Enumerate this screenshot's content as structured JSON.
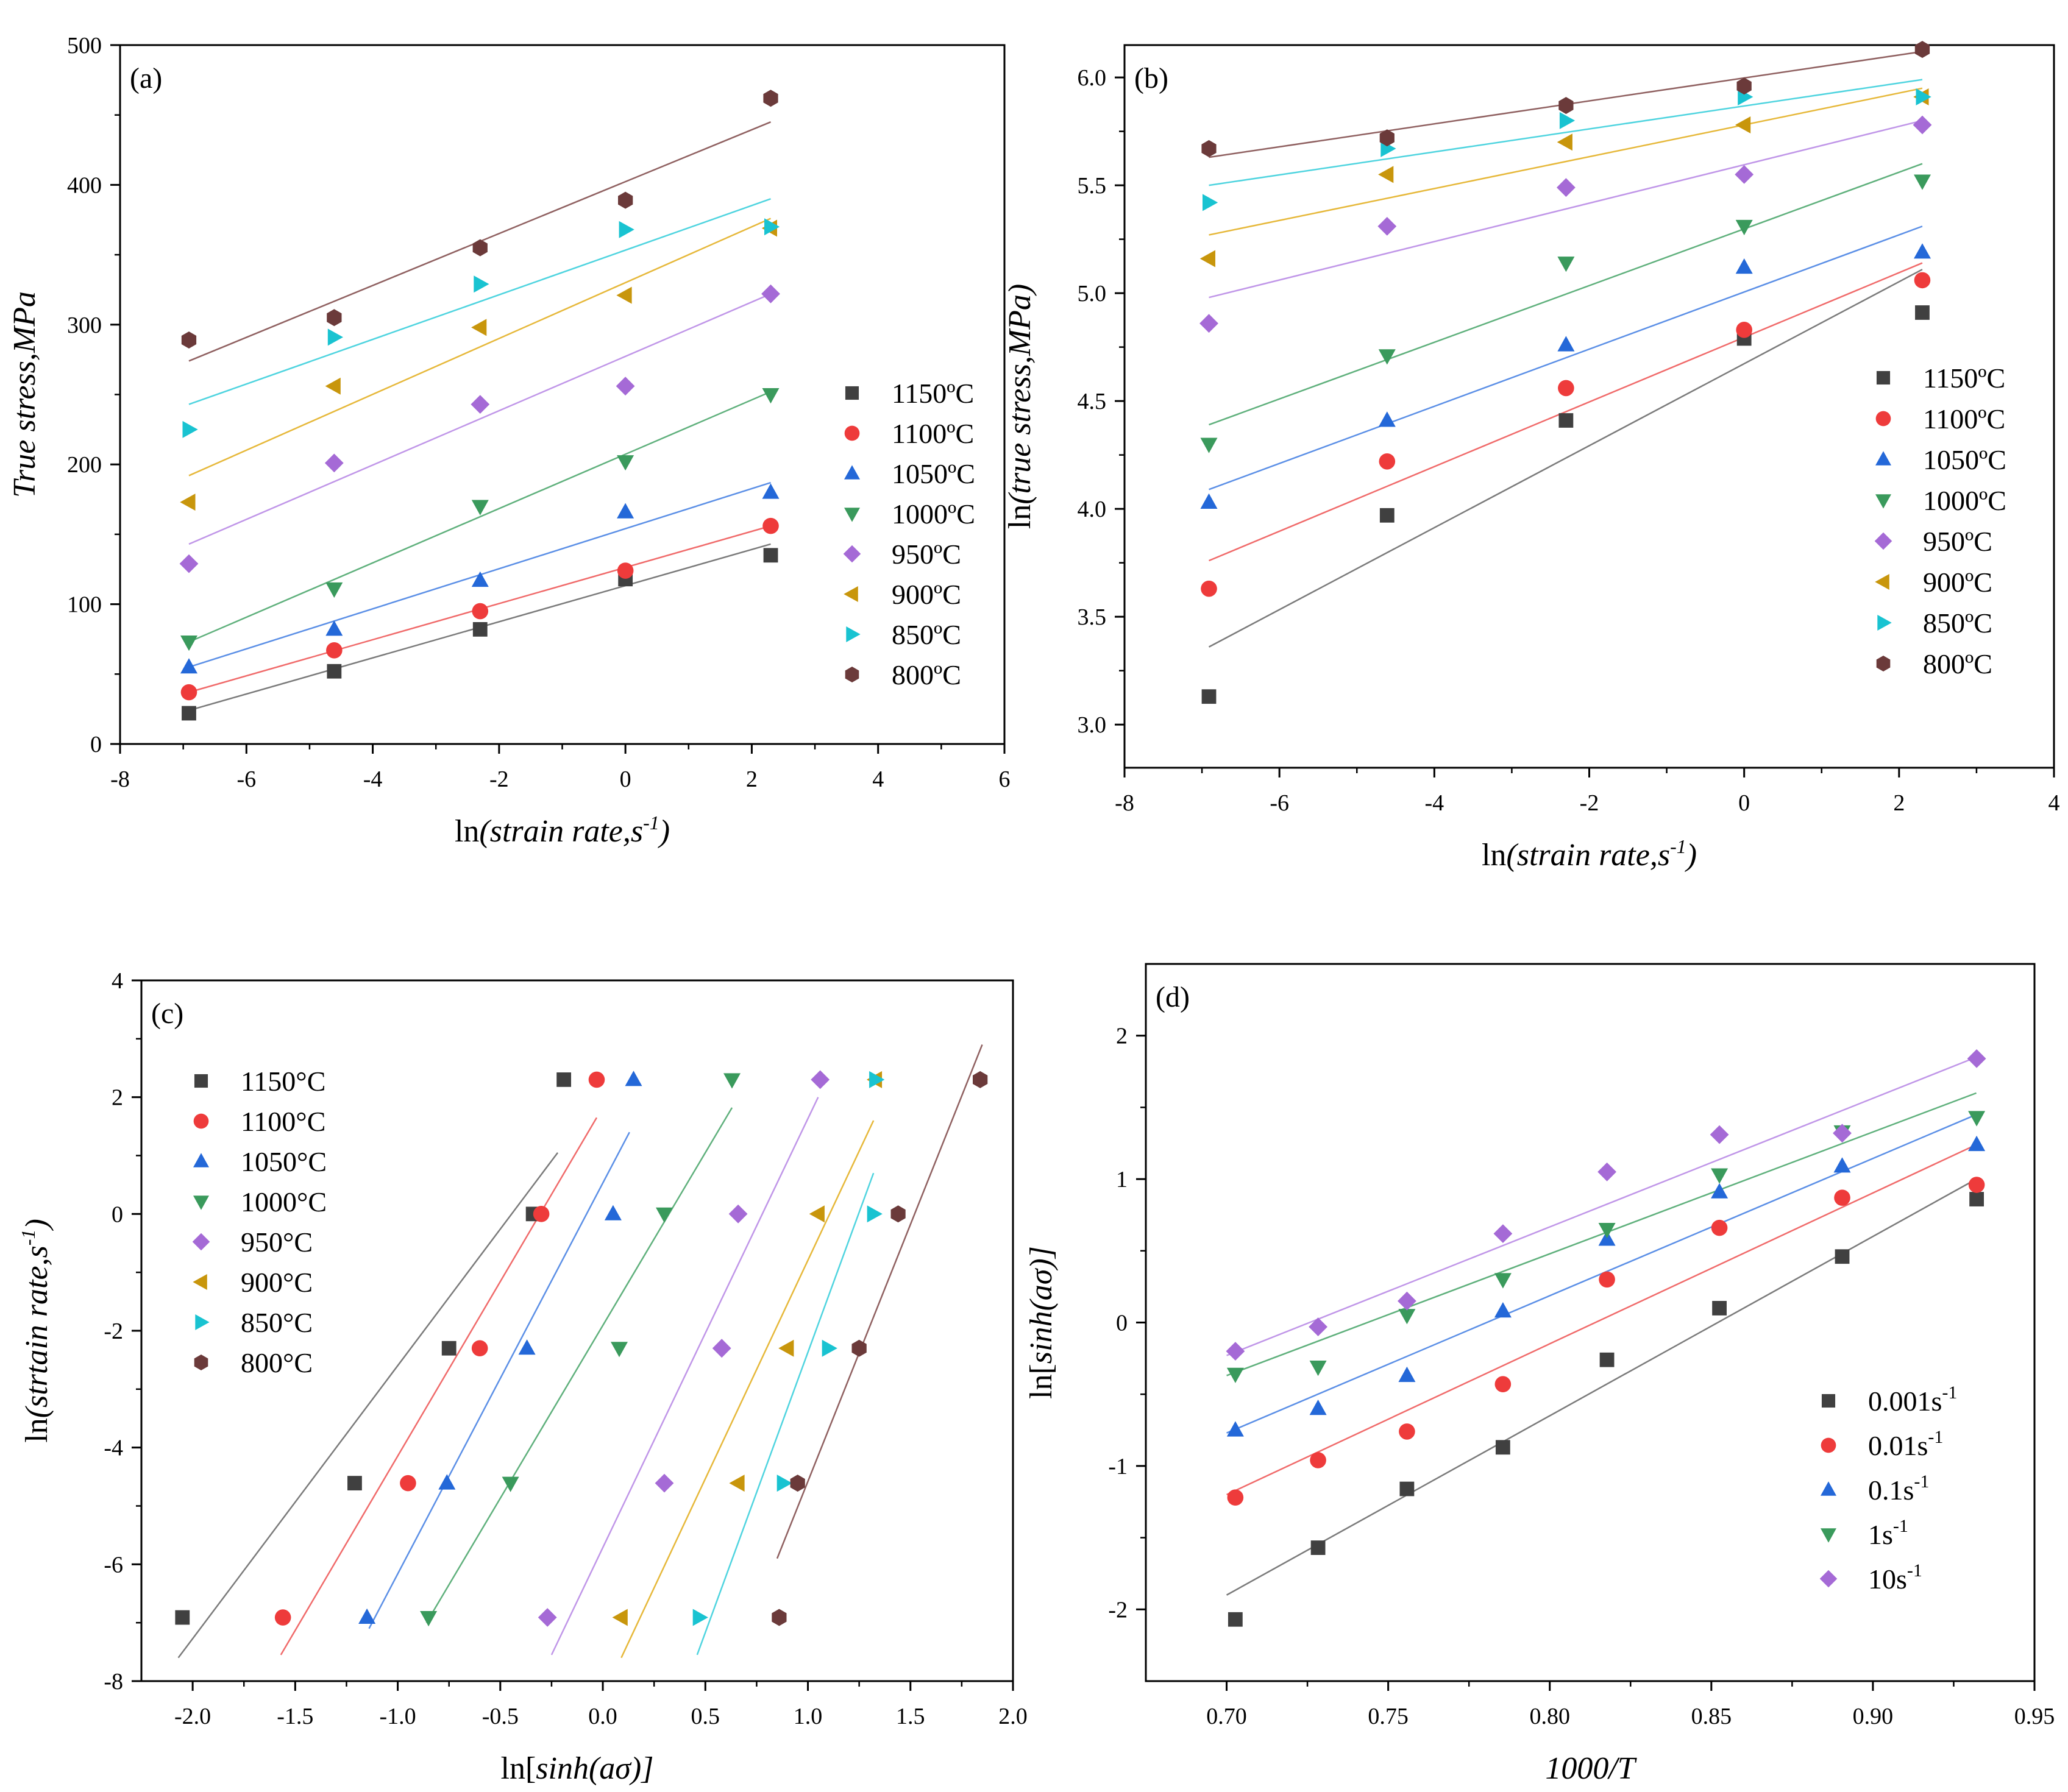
{
  "chart_data": [
    {
      "id": "a",
      "type": "scatter",
      "panel_label": "(a)",
      "xlabel_prefix": "ln",
      "xlabel_italic": "(strain rate,s",
      "xlabel_sup": "-1",
      "xlabel_end": ")",
      "ylabel_italic": "True stress,MPa",
      "xlim": [
        -8,
        6
      ],
      "ylim": [
        0,
        500
      ],
      "xticks": [
        -8,
        -6,
        -4,
        -2,
        0,
        2,
        4,
        6
      ],
      "yticks": [
        0,
        100,
        200,
        300,
        400,
        500
      ],
      "x": [
        -6.91,
        -4.61,
        -2.3,
        0,
        2.3
      ],
      "legend_position": "right",
      "series": [
        {
          "name": "1150ºC",
          "values": [
            22,
            52,
            82,
            118,
            135
          ],
          "fit": [
            [
              -6.91,
              24
            ],
            [
              2.3,
              143
            ]
          ]
        },
        {
          "name": "1100ºC",
          "values": [
            37,
            67,
            95,
            124,
            156
          ],
          "fit": [
            [
              -6.91,
              37
            ],
            [
              2.3,
              156
            ]
          ]
        },
        {
          "name": "1050ºC",
          "values": [
            55,
            82,
            117,
            166,
            180
          ],
          "fit": [
            [
              -6.91,
              55
            ],
            [
              2.3,
              187
            ]
          ]
        },
        {
          "name": "1000ºC",
          "values": [
            73,
            111,
            170,
            202,
            250
          ],
          "fit": [
            [
              -6.91,
              73
            ],
            [
              2.3,
              252
            ]
          ]
        },
        {
          "name": "950ºC",
          "values": [
            129,
            201,
            243,
            256,
            322
          ],
          "fit": [
            [
              -6.91,
              143
            ],
            [
              2.3,
              322
            ]
          ]
        },
        {
          "name": "900ºC",
          "values": [
            173,
            256,
            298,
            321,
            369
          ],
          "fit": [
            [
              -6.91,
              192
            ],
            [
              2.3,
              376
            ]
          ]
        },
        {
          "name": "850ºC",
          "values": [
            225,
            291,
            329,
            368,
            370
          ],
          "fit": [
            [
              -6.91,
              243
            ],
            [
              2.3,
              390
            ]
          ]
        },
        {
          "name": "800ºC",
          "values": [
            289,
            305,
            355,
            389,
            462
          ],
          "fit": [
            [
              -6.91,
              274
            ],
            [
              2.3,
              445
            ]
          ]
        }
      ]
    },
    {
      "id": "b",
      "type": "scatter",
      "panel_label": "(b)",
      "xlabel_prefix": "ln",
      "xlabel_italic": "(strain rate,s",
      "xlabel_sup": "-1",
      "xlabel_end": ")",
      "ylabel_prefix": "ln",
      "ylabel_italic": "(true stress,MPa)",
      "xlim": [
        -8,
        4
      ],
      "ylim": [
        2.8,
        6.15
      ],
      "xticks": [
        -8,
        -6,
        -4,
        -2,
        0,
        2,
        4
      ],
      "yticks": [
        3.0,
        3.5,
        4.0,
        4.5,
        5.0,
        5.5,
        6.0
      ],
      "ytick_decimals": 1,
      "x": [
        -6.91,
        -4.61,
        -2.3,
        0,
        2.3
      ],
      "legend_position": "right",
      "series": [
        {
          "name": "1150ºC",
          "values": [
            3.13,
            3.97,
            4.41,
            4.79,
            4.91
          ],
          "fit": [
            [
              -6.91,
              3.36
            ],
            [
              2.3,
              5.11
            ]
          ]
        },
        {
          "name": "1100ºC",
          "values": [
            3.63,
            4.22,
            4.56,
            4.83,
            5.06
          ],
          "fit": [
            [
              -6.91,
              3.76
            ],
            [
              2.3,
              5.14
            ]
          ]
        },
        {
          "name": "1050ºC",
          "values": [
            4.03,
            4.41,
            4.76,
            5.12,
            5.19
          ],
          "fit": [
            [
              -6.91,
              4.09
            ],
            [
              2.3,
              5.31
            ]
          ]
        },
        {
          "name": "1000ºC",
          "values": [
            4.3,
            4.71,
            5.14,
            5.31,
            5.52
          ],
          "fit": [
            [
              -6.91,
              4.39
            ],
            [
              2.3,
              5.6
            ]
          ]
        },
        {
          "name": "950ºC",
          "values": [
            4.86,
            5.31,
            5.49,
            5.55,
            5.78
          ],
          "fit": [
            [
              -6.91,
              4.98
            ],
            [
              2.3,
              5.8
            ]
          ]
        },
        {
          "name": "900ºC",
          "values": [
            5.16,
            5.55,
            5.7,
            5.78,
            5.91
          ],
          "fit": [
            [
              -6.91,
              5.27
            ],
            [
              2.3,
              5.95
            ]
          ]
        },
        {
          "name": "850ºC",
          "values": [
            5.42,
            5.67,
            5.8,
            5.91,
            5.91
          ],
          "fit": [
            [
              -6.91,
              5.5
            ],
            [
              2.3,
              5.99
            ]
          ]
        },
        {
          "name": "800ºC",
          "values": [
            5.67,
            5.72,
            5.87,
            5.96,
            6.13
          ],
          "fit": [
            [
              -6.91,
              5.63
            ],
            [
              2.3,
              6.12
            ]
          ]
        }
      ]
    },
    {
      "id": "c",
      "type": "scatter",
      "panel_label": "(c)",
      "xlabel_prefix": "ln[",
      "xlabel_italic": "sinh(aσ)",
      "xlabel_end": "]",
      "ylabel_prefix": "ln",
      "ylabel_italic": "(strtain rate,s",
      "ylabel_sup": "-1",
      "ylabel_end": ")",
      "xlim": [
        -2.25,
        2.0
      ],
      "ylim": [
        -8,
        4
      ],
      "xticks": [
        -2.0,
        -1.5,
        -1.0,
        -0.5,
        0.0,
        0.5,
        1.0,
        1.5,
        2.0
      ],
      "xtick_decimals": 1,
      "yticks": [
        -8,
        -6,
        -4,
        -2,
        0,
        2,
        4
      ],
      "y": [
        -6.91,
        -4.61,
        -2.3,
        0,
        2.3
      ],
      "legend_position": "left",
      "series": [
        {
          "name": "1150°C",
          "values": [
            -2.05,
            -1.21,
            -0.75,
            -0.34,
            -0.19
          ],
          "fit": [
            [
              -2.07,
              -7.6
            ],
            [
              -0.22,
              1.05
            ]
          ]
        },
        {
          "name": "1100°C",
          "values": [
            -1.56,
            -0.95,
            -0.6,
            -0.3,
            -0.03
          ],
          "fit": [
            [
              -1.57,
              -7.55
            ],
            [
              -0.03,
              1.65
            ]
          ]
        },
        {
          "name": "1050°C",
          "values": [
            -1.15,
            -0.76,
            -0.37,
            0.05,
            0.15
          ],
          "fit": [
            [
              -1.14,
              -7.1
            ],
            [
              0.13,
              1.4
            ]
          ]
        },
        {
          "name": "1000°C",
          "values": [
            -0.85,
            -0.45,
            0.08,
            0.3,
            0.63
          ],
          "fit": [
            [
              -0.86,
              -7.0
            ],
            [
              0.63,
              1.82
            ]
          ]
        },
        {
          "name": "950°C",
          "values": [
            -0.27,
            0.3,
            0.58,
            0.66,
            1.06
          ],
          "fit": [
            [
              -0.25,
              -7.55
            ],
            [
              1.05,
              2.0
            ]
          ]
        },
        {
          "name": "900°C",
          "values": [
            0.09,
            0.66,
            0.9,
            1.05,
            1.33
          ],
          "fit": [
            [
              0.09,
              -7.6
            ],
            [
              1.32,
              1.6
            ]
          ]
        },
        {
          "name": "850°C",
          "values": [
            0.47,
            0.88,
            1.1,
            1.32,
            1.33
          ],
          "fit": [
            [
              0.46,
              -7.55
            ],
            [
              1.32,
              0.7
            ]
          ]
        },
        {
          "name": "800°C",
          "values": [
            0.86,
            0.95,
            1.25,
            1.44,
            1.84
          ],
          "fit": [
            [
              0.85,
              -5.9
            ],
            [
              1.85,
              2.9
            ]
          ]
        }
      ]
    },
    {
      "id": "d",
      "type": "scatter",
      "panel_label": "(d)",
      "xlabel_italic": "1000/T",
      "ylabel_prefix": "ln[",
      "ylabel_italic": "sinh(aσ)",
      "ylabel_end": "]",
      "xlim": [
        0.675,
        0.95
      ],
      "ylim": [
        -2.5,
        2.5
      ],
      "xticks": [
        0.7,
        0.75,
        0.8,
        0.85,
        0.9,
        0.95
      ],
      "xtick_decimals": 2,
      "yticks": [
        -2,
        -1,
        0,
        1,
        2
      ],
      "x": [
        0.7027,
        0.7283,
        0.7558,
        0.7855,
        0.8177,
        0.8525,
        0.8905,
        0.9321
      ],
      "legend_position": "bottom-right",
      "series": [
        {
          "name": "0.001s",
          "name_sup": "-1",
          "values": [
            -2.07,
            -1.57,
            -1.16,
            -0.87,
            -0.26,
            0.1,
            0.46,
            0.86
          ],
          "fit": [
            [
              0.7,
              -1.9
            ],
            [
              0.932,
              1.0
            ]
          ]
        },
        {
          "name": "0.01s",
          "name_sup": "-1",
          "values": [
            -1.22,
            -0.96,
            -0.76,
            -0.43,
            0.3,
            0.66,
            0.87,
            0.96
          ],
          "fit": [
            [
              0.7,
              -1.2
            ],
            [
              0.932,
              1.24
            ]
          ]
        },
        {
          "name": "0.1s",
          "name_sup": "-1",
          "values": [
            -0.75,
            -0.6,
            -0.37,
            0.08,
            0.58,
            0.91,
            1.09,
            1.24
          ],
          "fit": [
            [
              0.7,
              -0.77
            ],
            [
              0.932,
              1.45
            ]
          ]
        },
        {
          "name": "1s",
          "name_sup": "-1",
          "values": [
            -0.36,
            -0.31,
            0.05,
            0.3,
            0.65,
            1.03,
            1.33,
            1.43
          ],
          "fit": [
            [
              0.7,
              -0.37
            ],
            [
              0.932,
              1.6
            ]
          ]
        },
        {
          "name": "10s",
          "name_sup": "-1",
          "values": [
            -0.2,
            -0.03,
            0.15,
            0.62,
            1.05,
            1.31,
            1.32,
            1.84
          ],
          "fit": [
            [
              0.7,
              -0.23
            ],
            [
              0.932,
              1.85
            ]
          ]
        }
      ]
    }
  ],
  "styles": {
    "temperature": [
      {
        "color": "#404040",
        "marker": "square"
      },
      {
        "color": "#ee3b3b",
        "marker": "circle"
      },
      {
        "color": "#2468d8",
        "marker": "triangle-up"
      },
      {
        "color": "#3a9a5c",
        "marker": "triangle-down"
      },
      {
        "color": "#a56ad6",
        "marker": "diamond"
      },
      {
        "color": "#c8960c",
        "marker": "triangle-left"
      },
      {
        "color": "#19c3d1",
        "marker": "triangle-right"
      },
      {
        "color": "#6b3a3a",
        "marker": "hexagon"
      }
    ],
    "rate": [
      {
        "color": "#404040",
        "marker": "square"
      },
      {
        "color": "#ee3b3b",
        "marker": "circle"
      },
      {
        "color": "#2468d8",
        "marker": "triangle-up"
      },
      {
        "color": "#3a9a5c",
        "marker": "triangle-down"
      },
      {
        "color": "#a56ad6",
        "marker": "diamond"
      }
    ],
    "fit_colors": {
      "temperature": [
        "#7a7a7a",
        "#f06a6a",
        "#5b8fe6",
        "#5fb07c",
        "#c096e8",
        "#e6b83a",
        "#4fd4df",
        "#8f6060"
      ],
      "rate": [
        "#7a7a7a",
        "#f06a6a",
        "#5b8fe6",
        "#5fb07c",
        "#c096e8"
      ]
    }
  }
}
